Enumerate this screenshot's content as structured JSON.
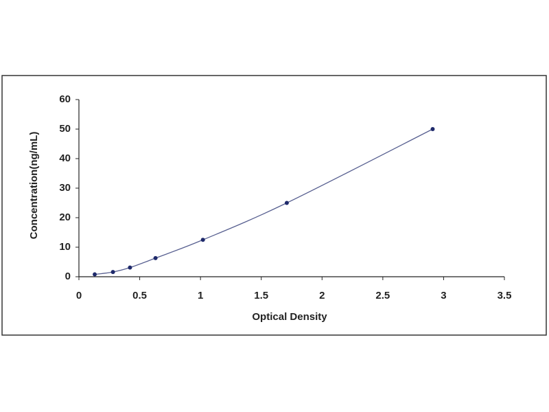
{
  "chart_data": {
    "type": "scatter",
    "x_label": "Optical Density",
    "y_label": "Concentration(ng/mL)",
    "series": [
      {
        "color": "#1f2a6b",
        "x": [
          0.13,
          0.28,
          0.42,
          0.63,
          1.02,
          1.71,
          2.91
        ],
        "values": [
          0.8,
          1.6,
          3.1,
          6.3,
          12.5,
          25,
          50
        ]
      }
    ],
    "trend_line": true,
    "xlim": [
      0,
      3.5
    ],
    "xticks": [
      0,
      0.5,
      1,
      1.5,
      2,
      2.5,
      3,
      3.5
    ],
    "ylim": [
      0,
      60
    ],
    "yticks": [
      0,
      10,
      20,
      30,
      40,
      50,
      60
    ],
    "grid": false
  }
}
